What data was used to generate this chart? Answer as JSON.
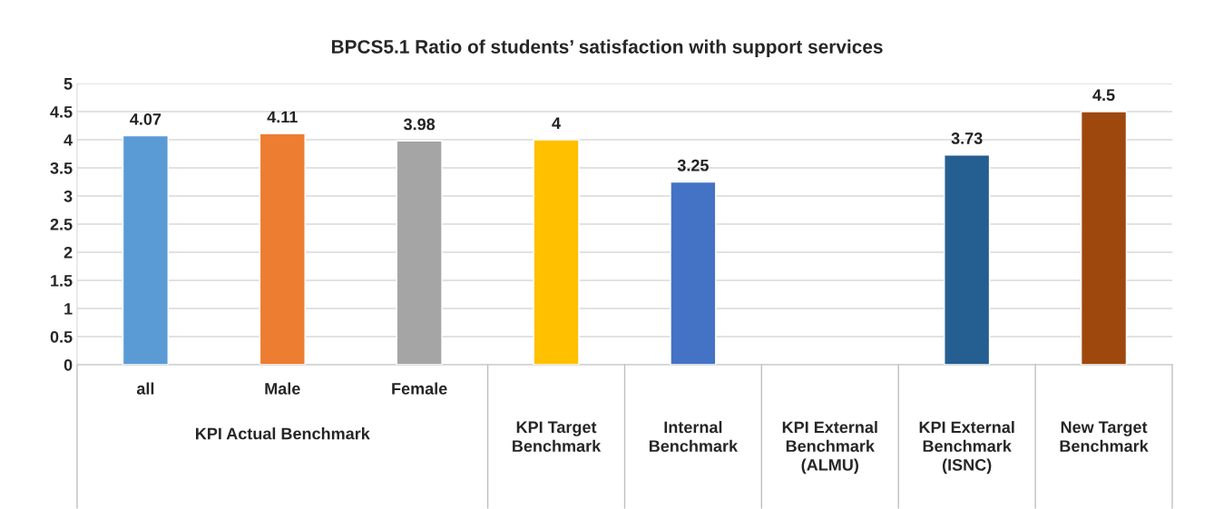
{
  "chart_data": {
    "type": "bar",
    "title": "BPCS5.1 Ratio of students’ satisfaction with support services",
    "categories": [
      "all",
      "Male",
      "Female",
      "KPI Target Benchmark",
      "Internal Benchmark",
      "KPI External Benchmark (ALMU)",
      "KPI External Benchmark (ISNC)",
      "New Target Benchmark"
    ],
    "values": [
      4.07,
      4.11,
      3.98,
      4,
      3.25,
      null,
      3.73,
      4.5
    ],
    "colors": [
      "#5b9bd5",
      "#ed7d31",
      "#a5a5a5",
      "#ffc000",
      "#4472c4",
      "#7f7f7f",
      "#255e91",
      "#9e480e"
    ],
    "annotations": [
      "KPI Actual Benchmark"
    ],
    "ylim": [
      0,
      5
    ],
    "yticks": [
      0,
      0.5,
      1,
      1.5,
      2,
      2.5,
      3,
      3.5,
      4,
      4.5,
      5
    ],
    "grid": "y",
    "data_labels": true
  }
}
